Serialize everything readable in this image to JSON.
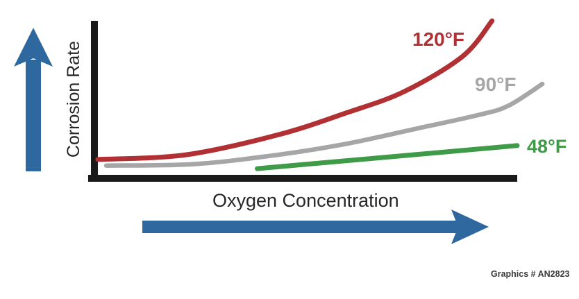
{
  "figure": {
    "background": "#ffffff",
    "credit": "Graphics # AN2823"
  },
  "colors": {
    "axis": "#1a1a1a",
    "arrow": "#2f689e",
    "text": "#262626",
    "credit_text": "#3d3d3d"
  },
  "chart_data": {
    "type": "line",
    "title": "",
    "xlabel": "Oxygen Concentration",
    "ylabel": "Corrosion Rate",
    "x_axis": {
      "range": [
        0,
        100
      ],
      "ticks": "none",
      "unit": "relative (unlabeled conceptual axis, increasing rightward)"
    },
    "y_axis": {
      "range": [
        0,
        100
      ],
      "ticks": "none",
      "unit": "relative (unlabeled conceptual axis, increasing upward)"
    },
    "grid": false,
    "legend_position": "inline-labels-at-line-ends",
    "series": [
      {
        "name": "120°F",
        "color": "#b13034",
        "points": [
          [
            0,
            10
          ],
          [
            21,
            13
          ],
          [
            43,
            26
          ],
          [
            59,
            40
          ],
          [
            73,
            54
          ],
          [
            87,
            77
          ],
          [
            94,
            100
          ]
        ]
      },
      {
        "name": "90°F",
        "color": "#a6a6a6",
        "points": [
          [
            2,
            6
          ],
          [
            23,
            7
          ],
          [
            43,
            13
          ],
          [
            59,
            20
          ],
          [
            76,
            30
          ],
          [
            91,
            39
          ],
          [
            98,
            45
          ],
          [
            106,
            59
          ]
        ]
      },
      {
        "name": "48°F",
        "color": "#3f9b48",
        "points": [
          [
            38,
            4
          ],
          [
            100,
            19
          ]
        ]
      }
    ]
  }
}
